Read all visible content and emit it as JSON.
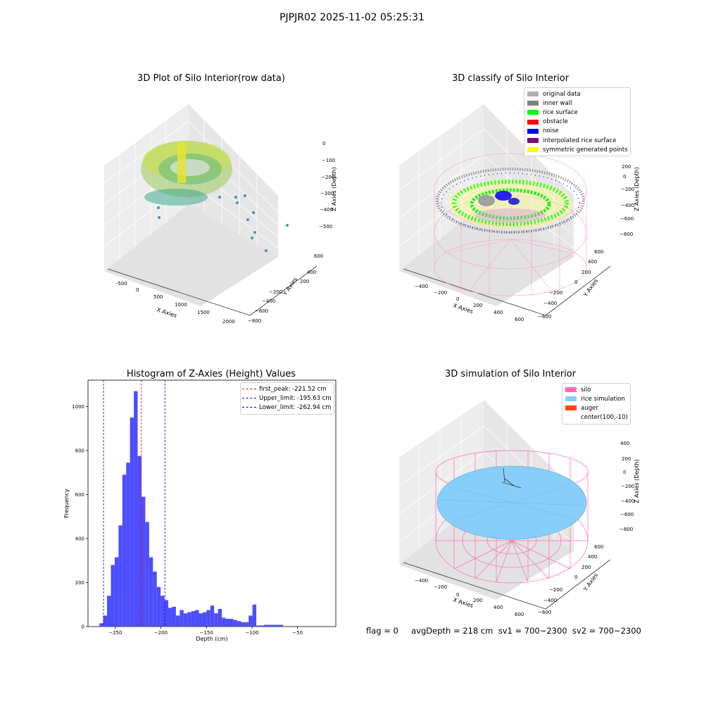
{
  "figure": {
    "suptitle": "PJPJR02 2025-11-02 05:25:31",
    "footer": "flag = 0     avgDepth = 218 cm  sv1 = 700~2300  sv2 = 700~2300"
  },
  "colors": {
    "hist_bar": "#4d4dff",
    "first_peak": "#ff0000",
    "limits": "#0000cc",
    "silo": "#ff69b4",
    "rice_simulation": "#87cefa",
    "auger": "#ff4500",
    "inner_wall": "#808080",
    "rice_surface": "#00ff00",
    "obstacle": "#ff0000",
    "noise": "#0000ff",
    "interpolated": "#800080",
    "symmetric": "#ffff00",
    "original": "#b0b0b0"
  },
  "panels": {
    "raw": {
      "title": "3D Plot of Silo Interior(row data)",
      "xlabel": "X Axies",
      "ylabel": "Y Axies",
      "zlabel": "Z Axies (Depth)",
      "xticks": [
        "-500",
        "0",
        "500",
        "1000",
        "1500",
        "2000"
      ],
      "yticks": [
        "600",
        "400",
        "200",
        "0",
        "−200",
        "−400",
        "−600",
        "−800"
      ],
      "zticks": [
        "0",
        "−100",
        "−200",
        "−300",
        "−400",
        "−500"
      ]
    },
    "classify": {
      "title": "3D classify of Silo Interior",
      "xlabel": "X Axies",
      "ylabel": "Y Axies",
      "zlabel": "Z Axies (Depth)",
      "xticks": [
        "−400",
        "−200",
        "0",
        "200",
        "400",
        "600"
      ],
      "yticks": [
        "600",
        "400",
        "200",
        "0",
        "−200",
        "−400",
        "−600"
      ],
      "zticks": [
        "400",
        "200",
        "0",
        "−200",
        "−400",
        "−600",
        "−800"
      ],
      "legend": [
        {
          "label": "original data",
          "color": "#b0b0b0"
        },
        {
          "label": "inner wall",
          "color": "#808080"
        },
        {
          "label": "rice surface",
          "color": "#00ff00"
        },
        {
          "label": "obstacle",
          "color": "#ff0000"
        },
        {
          "label": "noise",
          "color": "#0000ff"
        },
        {
          "label": "interpolated rice surface",
          "color": "#800080"
        },
        {
          "label": "symmetric generated points",
          "color": "#ffff00"
        }
      ]
    },
    "simulation": {
      "title": "3D simulation of Silo Interior",
      "xlabel": "X Axies",
      "ylabel": "Y Axies",
      "zlabel": "Z Axies (Depth)",
      "xticks": [
        "−400",
        "−200",
        "0",
        "200",
        "400",
        "600"
      ],
      "yticks": [
        "600",
        "400",
        "200",
        "0",
        "−200",
        "−400",
        "−600"
      ],
      "zticks": [
        "400",
        "200",
        "0",
        "−200",
        "−400",
        "−600",
        "−800"
      ],
      "legend": [
        {
          "label": "silo",
          "color": "#ff69b4"
        },
        {
          "label": "rice simulation",
          "color": "#87cefa"
        },
        {
          "label": "auger",
          "color": "#ff4500"
        },
        {
          "label": "center(100,-10)",
          "color": ""
        }
      ]
    }
  },
  "chart_data": {
    "type": "bar",
    "title": "Histogram of Z-Axies (Height) Values",
    "xlabel": "Depth (cm)",
    "ylabel": "Frequency",
    "xlim": [
      -280,
      -8
    ],
    "ylim": [
      0,
      1120
    ],
    "xticks": [
      -250,
      -200,
      -150,
      -100,
      -50
    ],
    "xtick_labels": [
      "−250",
      "−200",
      "−150",
      "−100",
      "−50"
    ],
    "yticks": [
      0,
      200,
      400,
      600,
      800,
      1000
    ],
    "bin_width": 4.2,
    "bin_start": -267.5,
    "values": [
      15,
      50,
      140,
      280,
      315,
      460,
      690,
      745,
      950,
      1070,
      775,
      590,
      475,
      315,
      250,
      180,
      140,
      120,
      85,
      90,
      50,
      75,
      60,
      65,
      70,
      75,
      60,
      65,
      75,
      95,
      60,
      80,
      40,
      35,
      35,
      30,
      25,
      20,
      20,
      50,
      100,
      5,
      5,
      8,
      8,
      8,
      8,
      8
    ],
    "lines": [
      {
        "name": "first_peak: -221.52 cm",
        "x": -221.52,
        "color": "#ff0000"
      },
      {
        "name": "Upper_limit: -195.63 cm",
        "x": -195.63,
        "color": "#0000cc"
      },
      {
        "name": "Lower_limit: -262.94 cm",
        "x": -262.94,
        "color": "#0000cc"
      }
    ]
  }
}
